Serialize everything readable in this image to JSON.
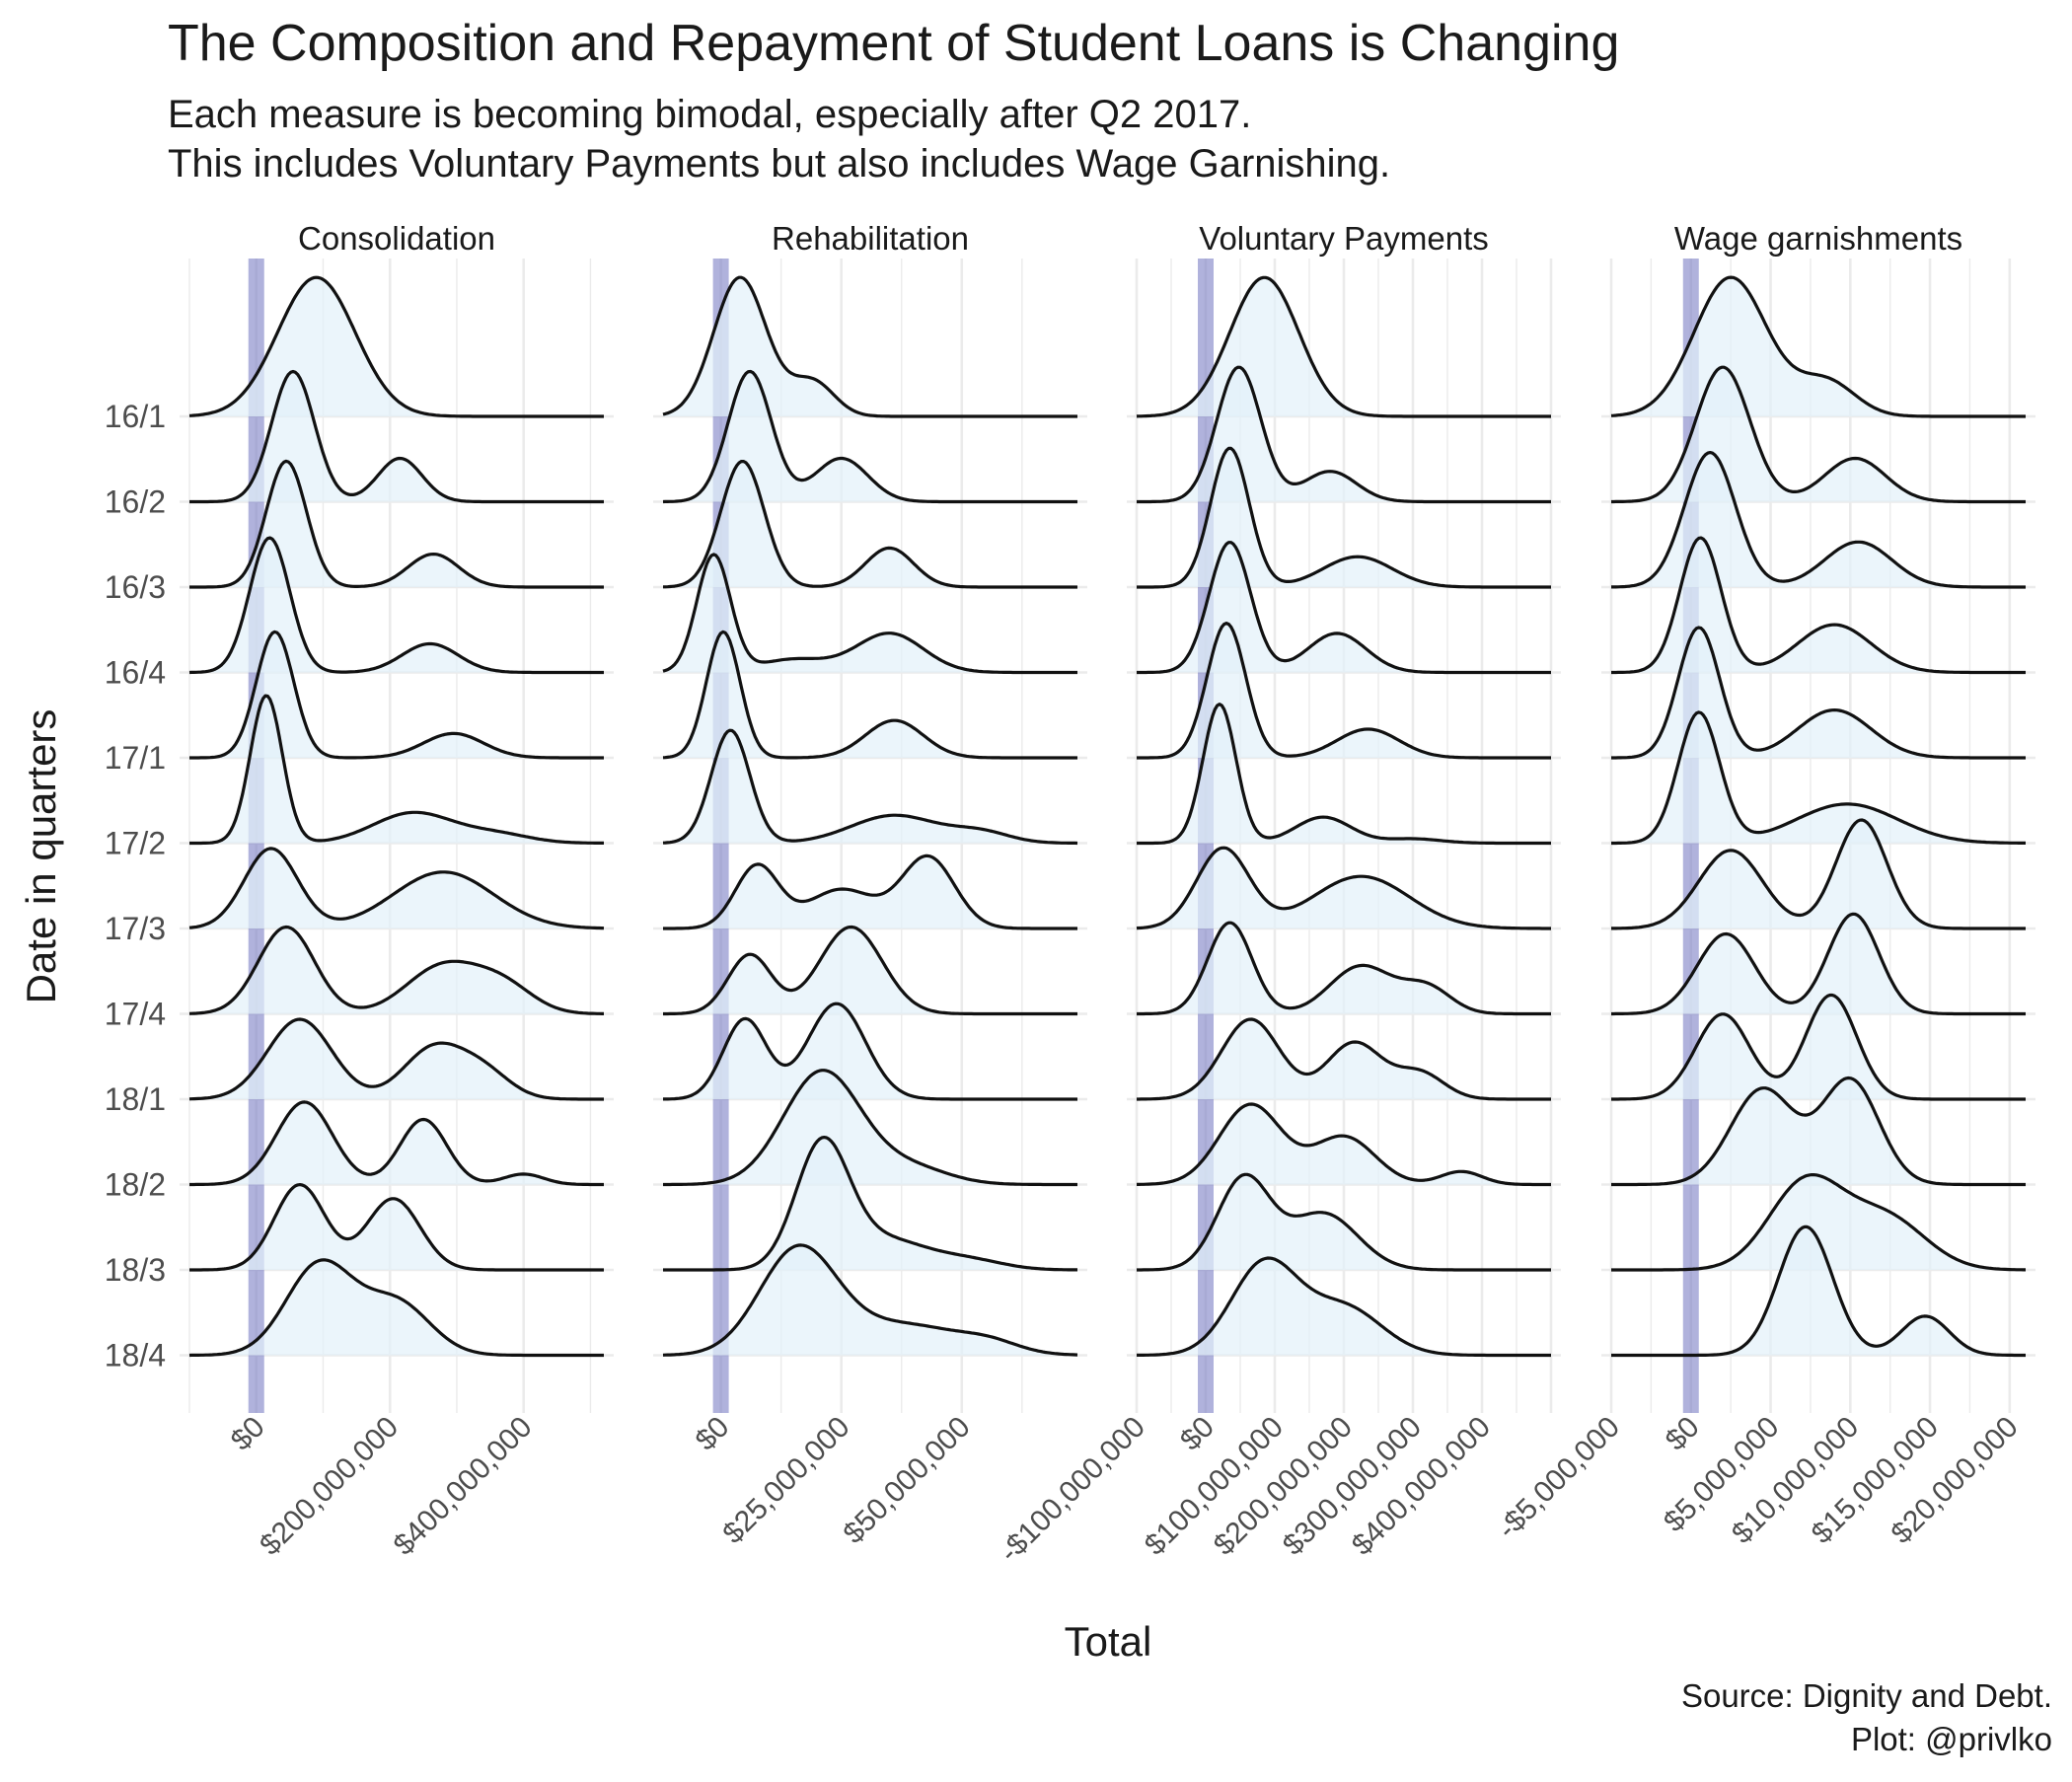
{
  "title": "The Composition and Repayment of Student Loans is Changing",
  "subtitle_line1": "Each measure is becoming bimodal, especially after Q2 2017.",
  "subtitle_line2": "This includes Voluntary Payments but also includes Wage Garnishing.",
  "caption_line1": "Source: Dignity and Debt.",
  "caption_line2": "Plot: @privlko",
  "chart_data": {
    "type": "ridgeline",
    "xlabel": "Total",
    "ylabel": "Date in quarters",
    "y_categories": [
      "16/1",
      "16/2",
      "16/3",
      "16/4",
      "17/1",
      "17/2",
      "17/3",
      "17/4",
      "18/1",
      "18/2",
      "18/3",
      "18/4"
    ],
    "reference_line": {
      "x": 0,
      "color": "#7b7fc4"
    },
    "fill_color": "#e3f1f9",
    "line_color": "#111111",
    "grid": true,
    "legend": "none",
    "facets": [
      {
        "name": "Consolidation",
        "xlim": [
          -100000000,
          520000000
        ],
        "tick_values": [
          0,
          200000000,
          400000000
        ],
        "tick_labels": [
          "$0",
          "$200,000,000",
          "$400,000,000"
        ],
        "series": [
          {
            "quarter": "16/1",
            "modes": [
              [
                90000000,
                1.6,
                58000000
              ]
            ]
          },
          {
            "quarter": "16/2",
            "modes": [
              [
                55000000,
                1.5,
                32000000
              ],
              [
                215000000,
                0.5,
                33000000
              ]
            ]
          },
          {
            "quarter": "16/3",
            "modes": [
              [
                45000000,
                1.45,
                30000000
              ],
              [
                265000000,
                0.38,
                38000000
              ]
            ]
          },
          {
            "quarter": "16/4",
            "modes": [
              [
                20000000,
                1.55,
                30000000
              ],
              [
                260000000,
                0.33,
                42000000
              ]
            ]
          },
          {
            "quarter": "17/1",
            "modes": [
              [
                28000000,
                1.45,
                28000000
              ],
              [
                295000000,
                0.28,
                45000000
              ]
            ]
          },
          {
            "quarter": "17/2",
            "modes": [
              [
                15000000,
                1.7,
                24000000
              ],
              [
                235000000,
                0.35,
                60000000
              ],
              [
                360000000,
                0.1,
                50000000
              ]
            ]
          },
          {
            "quarter": "17/3",
            "modes": [
              [
                22000000,
                0.92,
                40000000
              ],
              [
                280000000,
                0.65,
                75000000
              ]
            ]
          },
          {
            "quarter": "17/4",
            "modes": [
              [
                45000000,
                1.0,
                42000000
              ],
              [
                280000000,
                0.55,
                55000000
              ],
              [
                370000000,
                0.3,
                45000000
              ]
            ]
          },
          {
            "quarter": "18/1",
            "modes": [
              [
                65000000,
                0.92,
                48000000
              ],
              [
                265000000,
                0.58,
                45000000
              ],
              [
                340000000,
                0.3,
                40000000
              ]
            ]
          },
          {
            "quarter": "18/2",
            "modes": [
              [
                72000000,
                0.95,
                42000000
              ],
              [
                250000000,
                0.75,
                35000000
              ],
              [
                400000000,
                0.12,
                30000000
              ]
            ]
          },
          {
            "quarter": "18/3",
            "modes": [
              [
                65000000,
                0.98,
                38000000
              ],
              [
                205000000,
                0.82,
                40000000
              ]
            ]
          },
          {
            "quarter": "18/4",
            "modes": [
              [
                95000000,
                1.05,
                50000000
              ],
              [
                210000000,
                0.6,
                50000000
              ]
            ]
          }
        ]
      },
      {
        "name": "Rehabilitation",
        "xlim": [
          -12000000,
          74000000
        ],
        "tick_values": [
          0,
          25000000,
          50000000
        ],
        "tick_labels": [
          "$0",
          "$25,000,000",
          "$50,000,000"
        ],
        "series": [
          {
            "quarter": "16/1",
            "modes": [
              [
                4000000,
                1.6,
                5500000
              ],
              [
                19000000,
                0.4,
                4500000
              ]
            ]
          },
          {
            "quarter": "16/2",
            "modes": [
              [
                6000000,
                1.5,
                4500000
              ],
              [
                25000000,
                0.5,
                5500000
              ]
            ]
          },
          {
            "quarter": "16/3",
            "modes": [
              [
                4500000,
                1.45,
                4500000
              ],
              [
                35000000,
                0.45,
                5000000
              ]
            ]
          },
          {
            "quarter": "16/4",
            "modes": [
              [
                -1500000,
                1.35,
                3500000
              ],
              [
                35000000,
                0.45,
                7000000
              ],
              [
                15000000,
                0.15,
                7000000
              ]
            ]
          },
          {
            "quarter": "17/1",
            "modes": [
              [
                500000,
                1.45,
                3500000
              ],
              [
                36000000,
                0.43,
                6000000
              ]
            ]
          },
          {
            "quarter": "17/2",
            "modes": [
              [
                2000000,
                1.3,
                4000000
              ],
              [
                36000000,
                0.32,
                9000000
              ],
              [
                54000000,
                0.12,
                6000000
              ]
            ]
          },
          {
            "quarter": "17/3",
            "modes": [
              [
                7500000,
                0.72,
                4500000
              ],
              [
                25000000,
                0.45,
                7000000
              ],
              [
                43000000,
                0.82,
                5500000
              ]
            ]
          },
          {
            "quarter": "17/4",
            "modes": [
              [
                6000000,
                0.68,
                4500000
              ],
              [
                27000000,
                1.0,
                6500000
              ]
            ]
          },
          {
            "quarter": "18/1",
            "modes": [
              [
                5000000,
                0.92,
                4500000
              ],
              [
                24000000,
                1.1,
                6000000
              ]
            ]
          },
          {
            "quarter": "18/2",
            "modes": [
              [
                21000000,
                1.3,
                8000000
              ],
              [
                39000000,
                0.2,
                8000000
              ]
            ]
          },
          {
            "quarter": "18/3",
            "modes": [
              [
                21000000,
                1.4,
                5500000
              ],
              [
                34000000,
                0.35,
                9000000
              ],
              [
                52000000,
                0.1,
                7000000
              ]
            ]
          },
          {
            "quarter": "18/4",
            "modes": [
              [
                16000000,
                1.2,
                8000000
              ],
              [
                38000000,
                0.35,
                12000000
              ],
              [
                56000000,
                0.1,
                6000000
              ]
            ]
          }
        ]
      },
      {
        "name": "Voluntary Payments",
        "xlim": [
          -100000000,
          500000000
        ],
        "tick_values": [
          -100000000,
          0,
          100000000,
          200000000,
          300000000,
          400000000
        ],
        "tick_labels": [
          "-$100,000,000",
          "$0",
          "$100,000,000",
          "$200,000,000",
          "$300,000,000",
          "$400,000,000"
        ],
        "series": [
          {
            "quarter": "16/1",
            "modes": [
              [
                85000000,
                1.6,
                50000000
              ]
            ]
          },
          {
            "quarter": "16/2",
            "modes": [
              [
                48000000,
                1.55,
                32000000
              ],
              [
                180000000,
                0.35,
                38000000
              ]
            ]
          },
          {
            "quarter": "16/3",
            "modes": [
              [
                35000000,
                1.6,
                28000000
              ],
              [
                220000000,
                0.35,
                50000000
              ]
            ]
          },
          {
            "quarter": "16/4",
            "modes": [
              [
                35000000,
                1.5,
                30000000
              ],
              [
                190000000,
                0.45,
                42000000
              ]
            ]
          },
          {
            "quarter": "17/1",
            "modes": [
              [
                30000000,
                1.55,
                28000000
              ],
              [
                235000000,
                0.33,
                45000000
              ]
            ]
          },
          {
            "quarter": "17/2",
            "modes": [
              [
                20000000,
                1.6,
                24000000
              ],
              [
                170000000,
                0.3,
                40000000
              ],
              [
                300000000,
                0.05,
                40000000
              ]
            ]
          },
          {
            "quarter": "17/3",
            "modes": [
              [
                25000000,
                0.92,
                38000000
              ],
              [
                225000000,
                0.6,
                70000000
              ]
            ]
          },
          {
            "quarter": "17/4",
            "modes": [
              [
                35000000,
                1.05,
                32000000
              ],
              [
                225000000,
                0.55,
                45000000
              ],
              [
                320000000,
                0.3,
                35000000
              ]
            ]
          },
          {
            "quarter": "18/1",
            "modes": [
              [
                65000000,
                0.92,
                42000000
              ],
              [
                215000000,
                0.65,
                40000000
              ],
              [
                310000000,
                0.3,
                35000000
              ]
            ]
          },
          {
            "quarter": "18/2",
            "modes": [
              [
                65000000,
                0.92,
                45000000
              ],
              [
                200000000,
                0.55,
                45000000
              ],
              [
                370000000,
                0.15,
                30000000
              ]
            ]
          },
          {
            "quarter": "18/3",
            "modes": [
              [
                55000000,
                1.05,
                38000000
              ],
              [
                170000000,
                0.65,
                50000000
              ]
            ]
          },
          {
            "quarter": "18/4",
            "modes": [
              [
                85000000,
                1.05,
                48000000
              ],
              [
                200000000,
                0.55,
                55000000
              ]
            ]
          }
        ]
      },
      {
        "name": "Wage garnishments",
        "xlim": [
          -5000000,
          21000000
        ],
        "tick_values": [
          -5000000,
          0,
          5000000,
          10000000,
          15000000,
          20000000
        ],
        "tick_labels": [
          "-$5,000,000",
          "$0",
          "$5,000,000",
          "$10,000,000",
          "$15,000,000",
          "$20,000,000"
        ],
        "series": [
          {
            "quarter": "16/1",
            "modes": [
              [
                2500000,
                1.6,
                2300000
              ],
              [
                8500000,
                0.4,
                1800000
              ]
            ]
          },
          {
            "quarter": "16/2",
            "modes": [
              [
                2000000,
                1.55,
                1700000
              ],
              [
                10300000,
                0.5,
                1900000
              ]
            ]
          },
          {
            "quarter": "16/3",
            "modes": [
              [
                1200000,
                1.55,
                1600000
              ],
              [
                10500000,
                0.52,
                2100000
              ]
            ]
          },
          {
            "quarter": "16/4",
            "modes": [
              [
                600000,
                1.55,
                1300000
              ],
              [
                9000000,
                0.55,
                2300000
              ]
            ]
          },
          {
            "quarter": "17/1",
            "modes": [
              [
                500000,
                1.5,
                1300000
              ],
              [
                9000000,
                0.55,
                2300000
              ]
            ]
          },
          {
            "quarter": "17/2",
            "modes": [
              [
                500000,
                1.5,
                1300000
              ],
              [
                9800000,
                0.45,
                3200000
              ]
            ]
          },
          {
            "quarter": "17/3",
            "modes": [
              [
                2500000,
                0.9,
                2000000
              ],
              [
                10700000,
                1.25,
                1600000
              ]
            ]
          },
          {
            "quarter": "17/4",
            "modes": [
              [
                2200000,
                0.92,
                1800000
              ],
              [
                10200000,
                1.15,
                1600000
              ]
            ]
          },
          {
            "quarter": "18/1",
            "modes": [
              [
                2000000,
                0.98,
                1700000
              ],
              [
                8800000,
                1.2,
                1600000
              ]
            ]
          },
          {
            "quarter": "18/2",
            "modes": [
              [
                4500000,
                1.1,
                2000000
              ],
              [
                10000000,
                1.2,
                1800000
              ]
            ]
          },
          {
            "quarter": "18/3",
            "modes": [
              [
                7200000,
                1.0,
                2300000
              ],
              [
                12200000,
                0.6,
                2500000
              ]
            ]
          },
          {
            "quarter": "18/4",
            "modes": [
              [
                7200000,
                1.48,
                1700000
              ],
              [
                14700000,
                0.45,
                1500000
              ]
            ]
          }
        ]
      }
    ]
  }
}
